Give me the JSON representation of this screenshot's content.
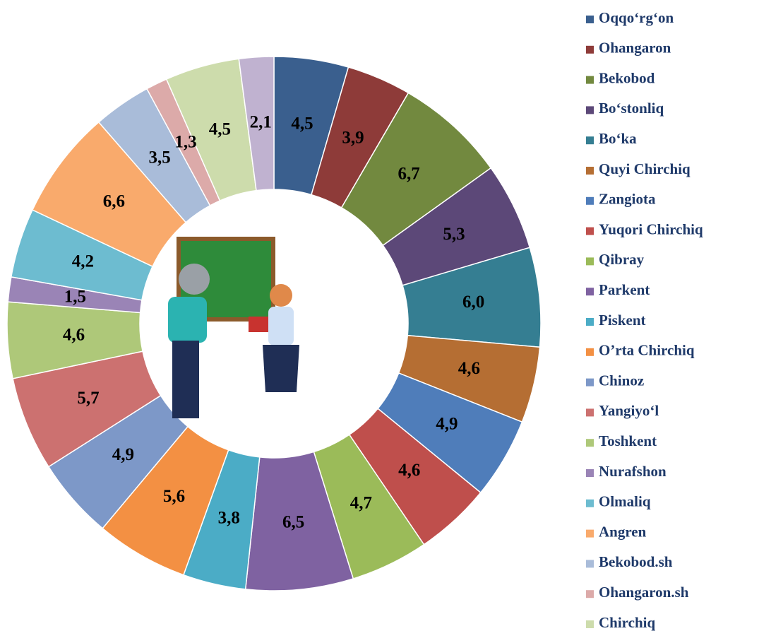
{
  "chart_data": {
    "type": "donut",
    "categories": [
      "Oqqo‘rg‘on",
      "Ohangaron",
      "Bekobod",
      "Bo‘stonliq",
      "Bo‘ka",
      "Quyi Chirchiq",
      "Zangiota",
      "Yuqori  Chirchiq",
      "Qibray",
      "Parkent",
      "Piskent",
      "O’rta Chirchiq",
      "Chinoz",
      "Yangiyo‘l",
      "Toshkent",
      "Nurafshon",
      "Olmaliq",
      "Angren",
      "Bekobod.sh",
      "Ohangaron.sh",
      "Chirchiq",
      null
    ],
    "values": [
      4.5,
      3.9,
      6.7,
      5.3,
      6.0,
      4.6,
      4.9,
      4.6,
      4.7,
      6.5,
      3.8,
      5.6,
      4.9,
      5.7,
      4.6,
      1.5,
      4.2,
      6.6,
      3.5,
      1.3,
      4.5,
      2.1
    ],
    "value_labels": [
      "4,5",
      "3,9",
      "6,7",
      "5,3",
      "6,0",
      "4,6",
      "4,9",
      "4,6",
      "4,7",
      "6,5",
      "3,8",
      "5,6",
      "4,9",
      "5,7",
      "4,6",
      "1,5",
      "4,2",
      "6,6",
      "3,5",
      "1,3",
      "4,5",
      "2,1"
    ],
    "colors": [
      "#3a5f8e",
      "#8e3b39",
      "#72893f",
      "#5c4878",
      "#357e92",
      "#b56e33",
      "#4f7dba",
      "#bf4f4c",
      "#9bbb59",
      "#7f62a1",
      "#4bacc6",
      "#f39043",
      "#7d98c8",
      "#cc7170",
      "#aec879",
      "#9a84b6",
      "#6dbcd0",
      "#f9aa6c",
      "#a9bcd9",
      "#dcaaa9",
      "#cddcac",
      "#c0b2d0"
    ]
  }
}
